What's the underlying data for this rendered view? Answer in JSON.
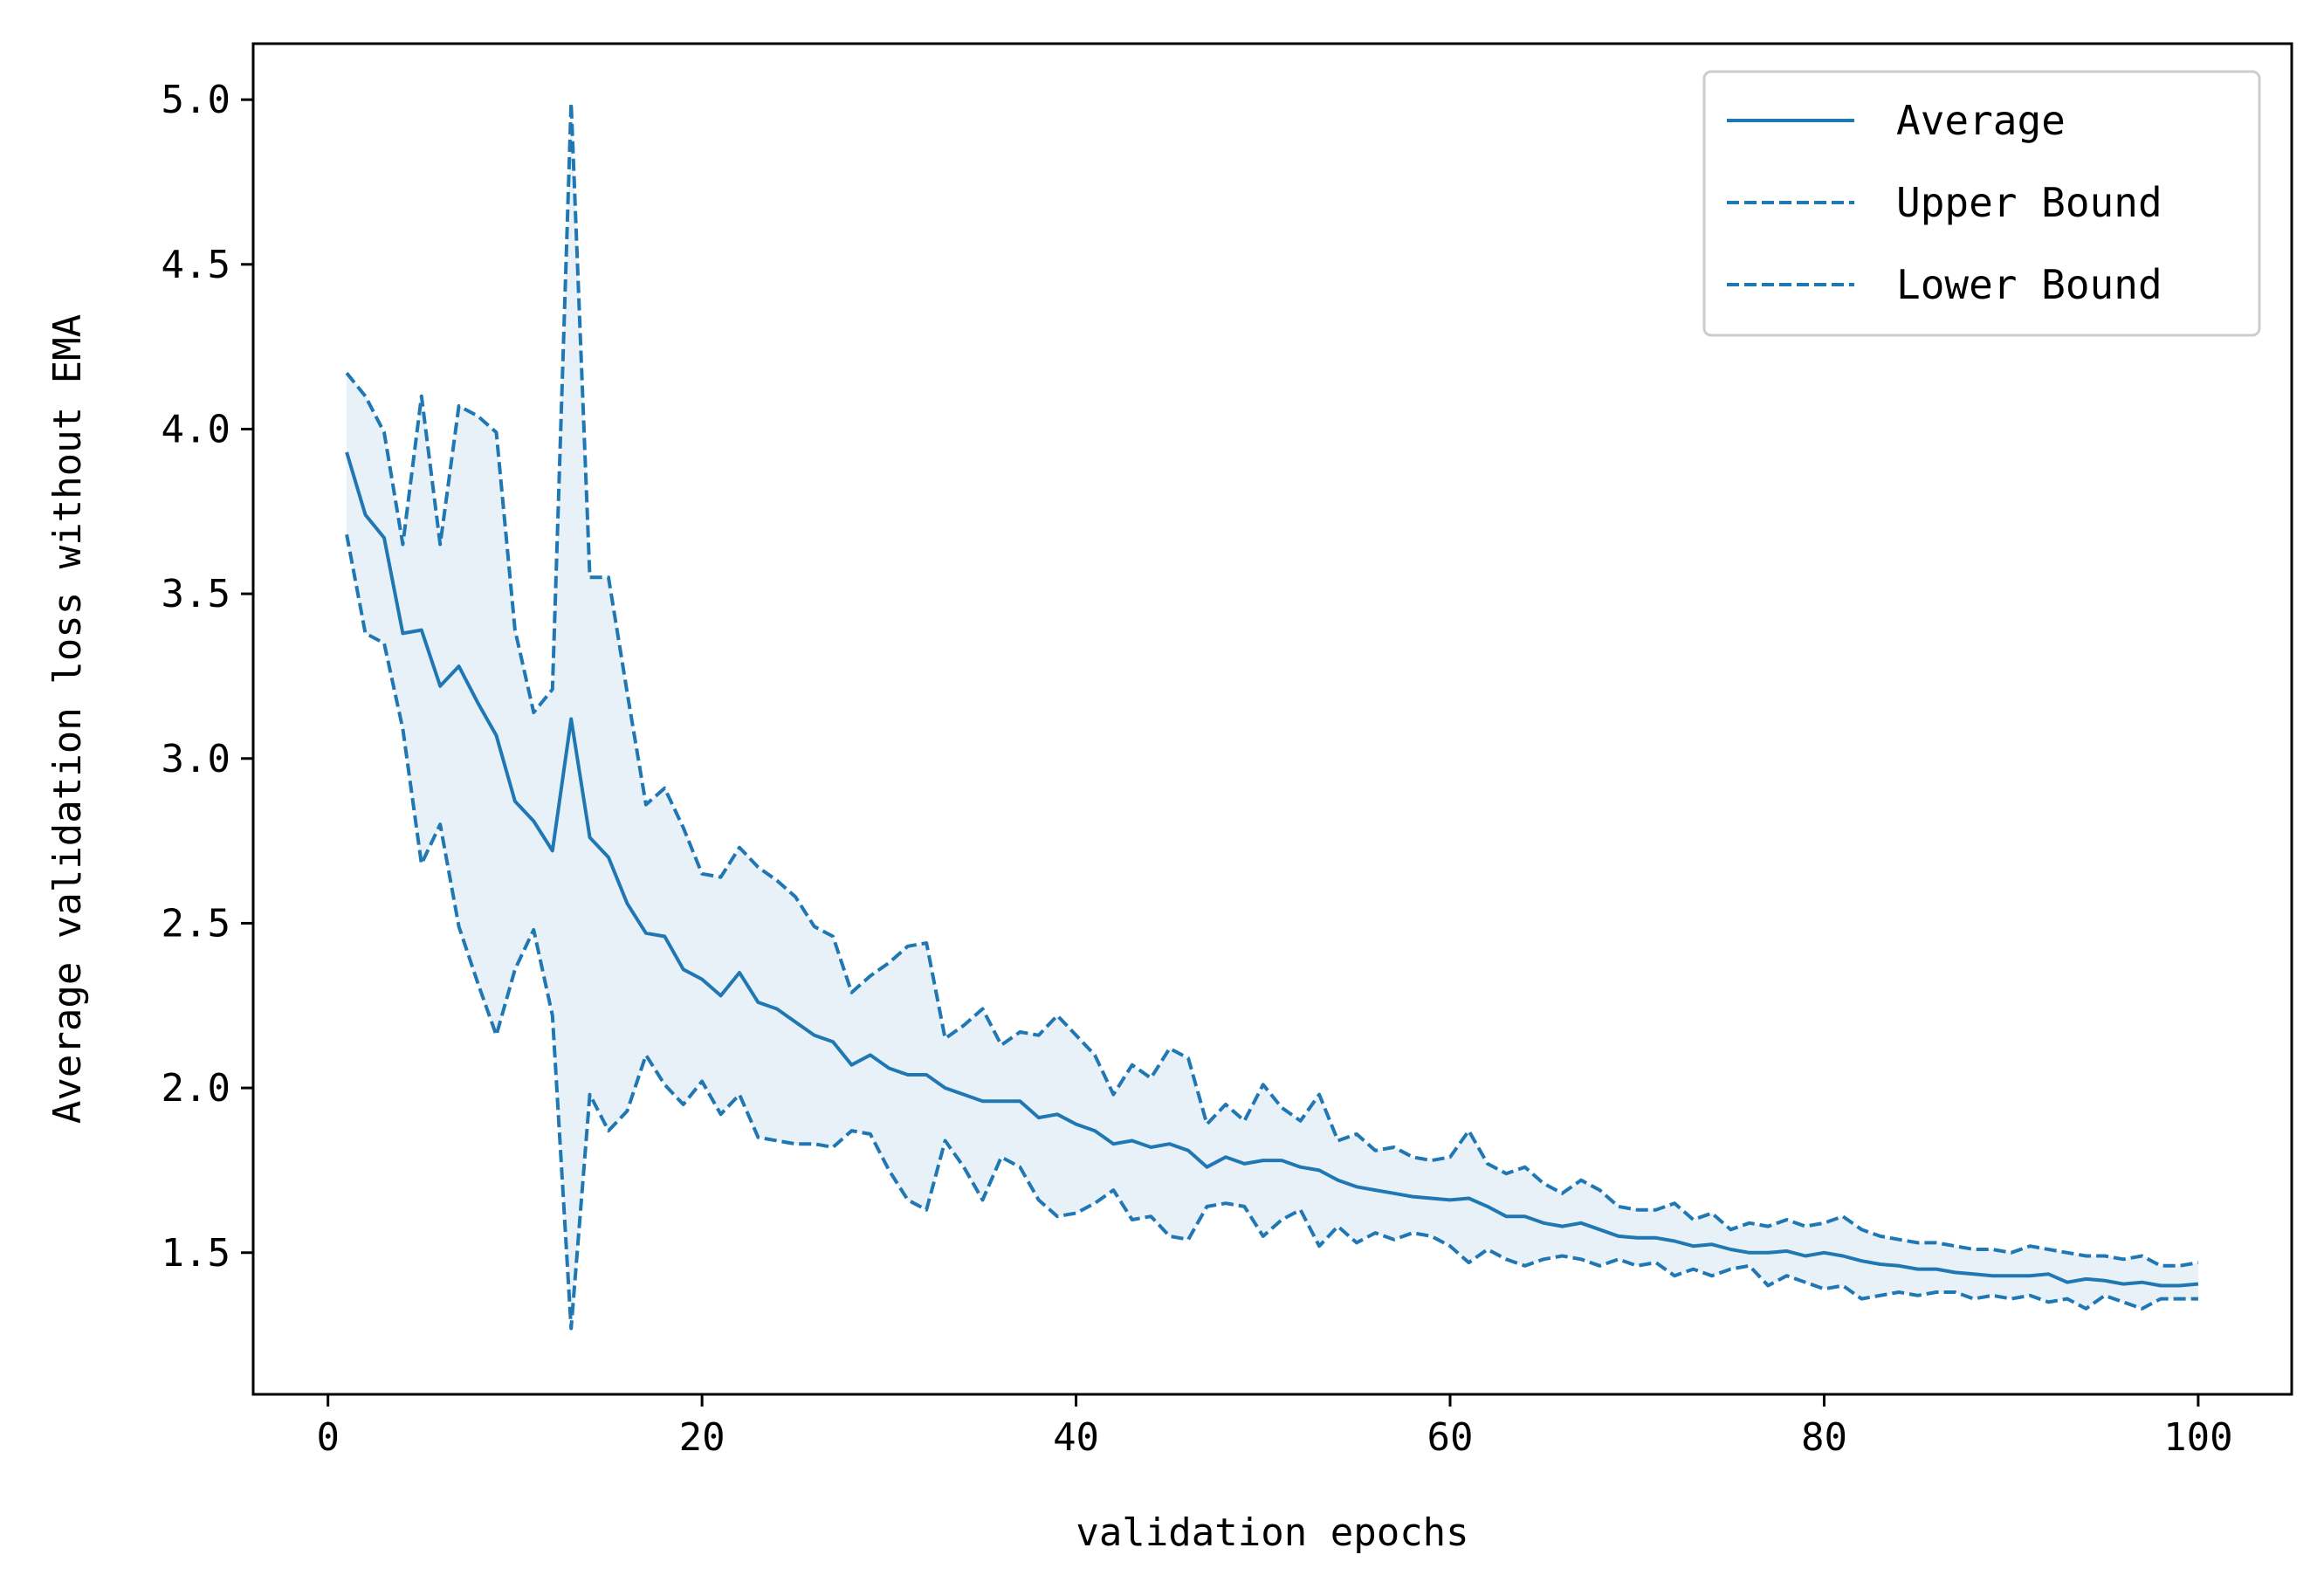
{
  "chart_data": {
    "type": "line",
    "title": "",
    "xlabel": "validation epochs",
    "ylabel": "Average validation loss without EMA",
    "xlim": [
      -4,
      105
    ],
    "ylim": [
      1.07,
      5.17
    ],
    "xticks": [
      0,
      20,
      40,
      60,
      80,
      100
    ],
    "xtick_labels": [
      "0",
      "20",
      "40",
      "60",
      "80",
      "100"
    ],
    "yticks": [
      1.5,
      2.0,
      2.5,
      3.0,
      3.5,
      4.0,
      4.5,
      5.0
    ],
    "ytick_labels": [
      "1.5",
      "2.0",
      "2.5",
      "3.0",
      "3.5",
      "4.0",
      "4.5",
      "5.0"
    ],
    "grid": false,
    "legend_position": "top-right",
    "colors": {
      "line": "#1f77b4",
      "fill": "#1f77b4",
      "axes": "#000000",
      "legend_border": "#cccccc"
    },
    "x": [
      1,
      2,
      3,
      4,
      5,
      6,
      7,
      8,
      9,
      10,
      11,
      12,
      13,
      14,
      15,
      16,
      17,
      18,
      19,
      20,
      21,
      22,
      23,
      24,
      25,
      26,
      27,
      28,
      29,
      30,
      31,
      32,
      33,
      34,
      35,
      36,
      37,
      38,
      39,
      40,
      41,
      42,
      43,
      44,
      45,
      46,
      47,
      48,
      49,
      50,
      51,
      52,
      53,
      54,
      55,
      56,
      57,
      58,
      59,
      60,
      61,
      62,
      63,
      64,
      65,
      66,
      67,
      68,
      69,
      70,
      71,
      72,
      73,
      74,
      75,
      76,
      77,
      78,
      79,
      80,
      81,
      82,
      83,
      84,
      85,
      86,
      87,
      88,
      89,
      90,
      91,
      92,
      93,
      94,
      95,
      96,
      97,
      98,
      99,
      100
    ],
    "series": [
      {
        "name": "Average",
        "style": "solid",
        "values": [
          3.93,
          3.74,
          3.67,
          3.38,
          3.39,
          3.22,
          3.28,
          3.17,
          3.07,
          2.87,
          2.81,
          2.72,
          3.12,
          2.76,
          2.7,
          2.56,
          2.47,
          2.46,
          2.36,
          2.33,
          2.28,
          2.35,
          2.26,
          2.24,
          2.2,
          2.16,
          2.14,
          2.07,
          2.1,
          2.06,
          2.04,
          2.04,
          2.0,
          1.98,
          1.96,
          1.96,
          1.96,
          1.91,
          1.92,
          1.89,
          1.87,
          1.83,
          1.84,
          1.82,
          1.83,
          1.81,
          1.76,
          1.79,
          1.77,
          1.78,
          1.78,
          1.76,
          1.75,
          1.72,
          1.7,
          1.69,
          1.68,
          1.67,
          1.665,
          1.66,
          1.665,
          1.64,
          1.61,
          1.61,
          1.59,
          1.58,
          1.59,
          1.57,
          1.55,
          1.545,
          1.545,
          1.535,
          1.52,
          1.525,
          1.51,
          1.5,
          1.5,
          1.505,
          1.49,
          1.5,
          1.49,
          1.475,
          1.465,
          1.46,
          1.45,
          1.45,
          1.44,
          1.435,
          1.43,
          1.43,
          1.43,
          1.435,
          1.41,
          1.42,
          1.415,
          1.405,
          1.41,
          1.4,
          1.4,
          1.405
        ]
      },
      {
        "name": "Upper Bound",
        "style": "dashed",
        "values": [
          4.17,
          4.1,
          3.99,
          3.65,
          4.1,
          3.65,
          4.07,
          4.04,
          3.99,
          3.39,
          3.14,
          3.21,
          4.99,
          3.55,
          3.55,
          3.2,
          2.86,
          2.91,
          2.79,
          2.65,
          2.64,
          2.73,
          2.67,
          2.63,
          2.58,
          2.49,
          2.46,
          2.29,
          2.34,
          2.38,
          2.43,
          2.44,
          2.15,
          2.19,
          2.24,
          2.13,
          2.17,
          2.16,
          2.22,
          2.16,
          2.1,
          1.98,
          2.07,
          2.03,
          2.12,
          2.09,
          1.89,
          1.95,
          1.9,
          2.01,
          1.94,
          1.9,
          1.98,
          1.84,
          1.86,
          1.81,
          1.82,
          1.79,
          1.78,
          1.79,
          1.87,
          1.77,
          1.74,
          1.76,
          1.71,
          1.68,
          1.72,
          1.69,
          1.64,
          1.63,
          1.63,
          1.65,
          1.6,
          1.62,
          1.57,
          1.59,
          1.58,
          1.6,
          1.58,
          1.59,
          1.61,
          1.57,
          1.55,
          1.54,
          1.53,
          1.53,
          1.52,
          1.51,
          1.51,
          1.5,
          1.52,
          1.51,
          1.5,
          1.49,
          1.49,
          1.48,
          1.49,
          1.46,
          1.46,
          1.47
        ]
      },
      {
        "name": "Lower Bound",
        "style": "dashed",
        "values": [
          3.68,
          3.38,
          3.35,
          3.09,
          2.68,
          2.8,
          2.49,
          2.32,
          2.16,
          2.36,
          2.48,
          2.22,
          1.27,
          1.98,
          1.87,
          1.93,
          2.1,
          2.01,
          1.95,
          2.02,
          1.92,
          1.98,
          1.85,
          1.84,
          1.83,
          1.83,
          1.82,
          1.87,
          1.86,
          1.75,
          1.66,
          1.63,
          1.84,
          1.76,
          1.66,
          1.79,
          1.76,
          1.66,
          1.61,
          1.62,
          1.65,
          1.69,
          1.6,
          1.61,
          1.55,
          1.54,
          1.64,
          1.65,
          1.64,
          1.55,
          1.6,
          1.63,
          1.52,
          1.58,
          1.53,
          1.56,
          1.54,
          1.56,
          1.55,
          1.52,
          1.47,
          1.51,
          1.48,
          1.46,
          1.48,
          1.49,
          1.48,
          1.46,
          1.48,
          1.46,
          1.47,
          1.43,
          1.45,
          1.43,
          1.45,
          1.46,
          1.4,
          1.43,
          1.41,
          1.39,
          1.4,
          1.36,
          1.37,
          1.38,
          1.37,
          1.38,
          1.38,
          1.36,
          1.37,
          1.36,
          1.37,
          1.35,
          1.36,
          1.33,
          1.37,
          1.35,
          1.33,
          1.36,
          1.36,
          1.36
        ]
      }
    ]
  }
}
